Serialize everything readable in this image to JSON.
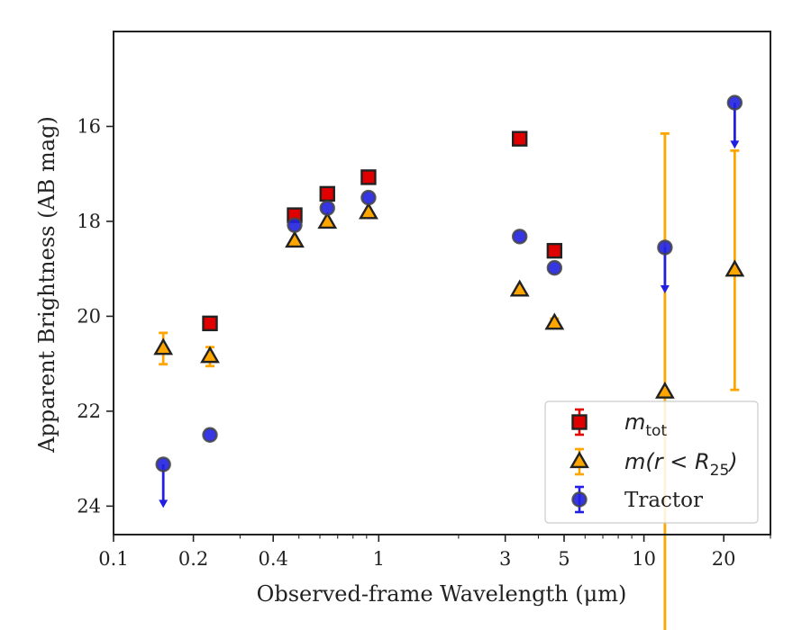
{
  "chart_data": {
    "type": "scatter",
    "xlabel": "Observed-frame Wavelength (μm)",
    "ylabel": "Apparent Brightness (AB mag)",
    "x_scale": "log",
    "xlim": [
      0.1,
      30
    ],
    "ylim": [
      24.6,
      14.0
    ],
    "y_inverted": true,
    "x_ticks": [
      {
        "value": 0.1,
        "label": "0.1"
      },
      {
        "value": 0.2,
        "label": "0.2"
      },
      {
        "value": 0.4,
        "label": "0.4"
      },
      {
        "value": 1,
        "label": "1"
      },
      {
        "value": 3,
        "label": "3"
      },
      {
        "value": 5,
        "label": "5"
      },
      {
        "value": 10,
        "label": "10"
      },
      {
        "value": 20,
        "label": "20"
      }
    ],
    "y_ticks": [
      {
        "value": 16,
        "label": "16"
      },
      {
        "value": 18,
        "label": "18"
      },
      {
        "value": 20,
        "label": "20"
      },
      {
        "value": 22,
        "label": "22"
      },
      {
        "value": 24,
        "label": "24"
      }
    ],
    "grid": false,
    "legend_position": "bottom-right",
    "series": [
      {
        "name": "m_tot",
        "marker": "square",
        "face_color": "#e00000",
        "edge_color": "#222222",
        "error_color": "#e00000",
        "points": [
          {
            "x": 0.231,
            "y": 20.15,
            "err": 0
          },
          {
            "x": 0.482,
            "y": 17.87,
            "err": 0
          },
          {
            "x": 0.64,
            "y": 17.42,
            "err": 0
          },
          {
            "x": 0.915,
            "y": 17.07,
            "err": 0
          },
          {
            "x": 3.4,
            "y": 16.26,
            "err": 0
          },
          {
            "x": 4.6,
            "y": 18.62,
            "err": 0
          }
        ]
      },
      {
        "name": "m(r < R25)",
        "marker": "triangle",
        "face_color": "#ffa500",
        "edge_color": "#222222",
        "error_color": "#ffa500",
        "points": [
          {
            "x": 0.154,
            "y": 20.68,
            "err": 0.33
          },
          {
            "x": 0.231,
            "y": 20.85,
            "err": 0.2
          },
          {
            "x": 0.482,
            "y": 18.42,
            "err": 0
          },
          {
            "x": 0.64,
            "y": 18.02,
            "err": 0
          },
          {
            "x": 0.915,
            "y": 17.82,
            "err": 0
          },
          {
            "x": 3.4,
            "y": 19.45,
            "err": 0
          },
          {
            "x": 4.6,
            "y": 20.15,
            "err": 0.1
          },
          {
            "x": 12.0,
            "y": 21.6,
            "err": 5.45
          },
          {
            "x": 22.0,
            "y": 19.03,
            "err": 2.52
          }
        ]
      },
      {
        "name": "Tractor",
        "marker": "circle",
        "face_color": "#2020e0",
        "edge_color": "#444444",
        "error_color": "#2020e0",
        "points": [
          {
            "x": 0.154,
            "y": 23.12,
            "upper_limit": true,
            "arrow": 0.9
          },
          {
            "x": 0.231,
            "y": 22.5,
            "upper_limit": false
          },
          {
            "x": 0.482,
            "y": 18.08,
            "upper_limit": false
          },
          {
            "x": 0.64,
            "y": 17.72,
            "upper_limit": false
          },
          {
            "x": 0.915,
            "y": 17.5,
            "upper_limit": false
          },
          {
            "x": 3.4,
            "y": 18.32,
            "upper_limit": false
          },
          {
            "x": 4.6,
            "y": 18.98,
            "upper_limit": false
          },
          {
            "x": 12.0,
            "y": 18.55,
            "upper_limit": true,
            "arrow": 0.95
          },
          {
            "x": 22.0,
            "y": 15.5,
            "upper_limit": true,
            "arrow": 0.95
          }
        ]
      }
    ],
    "legend": {
      "entries": [
        {
          "series": 0,
          "main": "m",
          "sub": "tot"
        },
        {
          "series": 1,
          "main": "m(r < R",
          "sub": "25",
          "tail": ")"
        },
        {
          "series": 2,
          "label": "Tractor"
        }
      ]
    }
  }
}
